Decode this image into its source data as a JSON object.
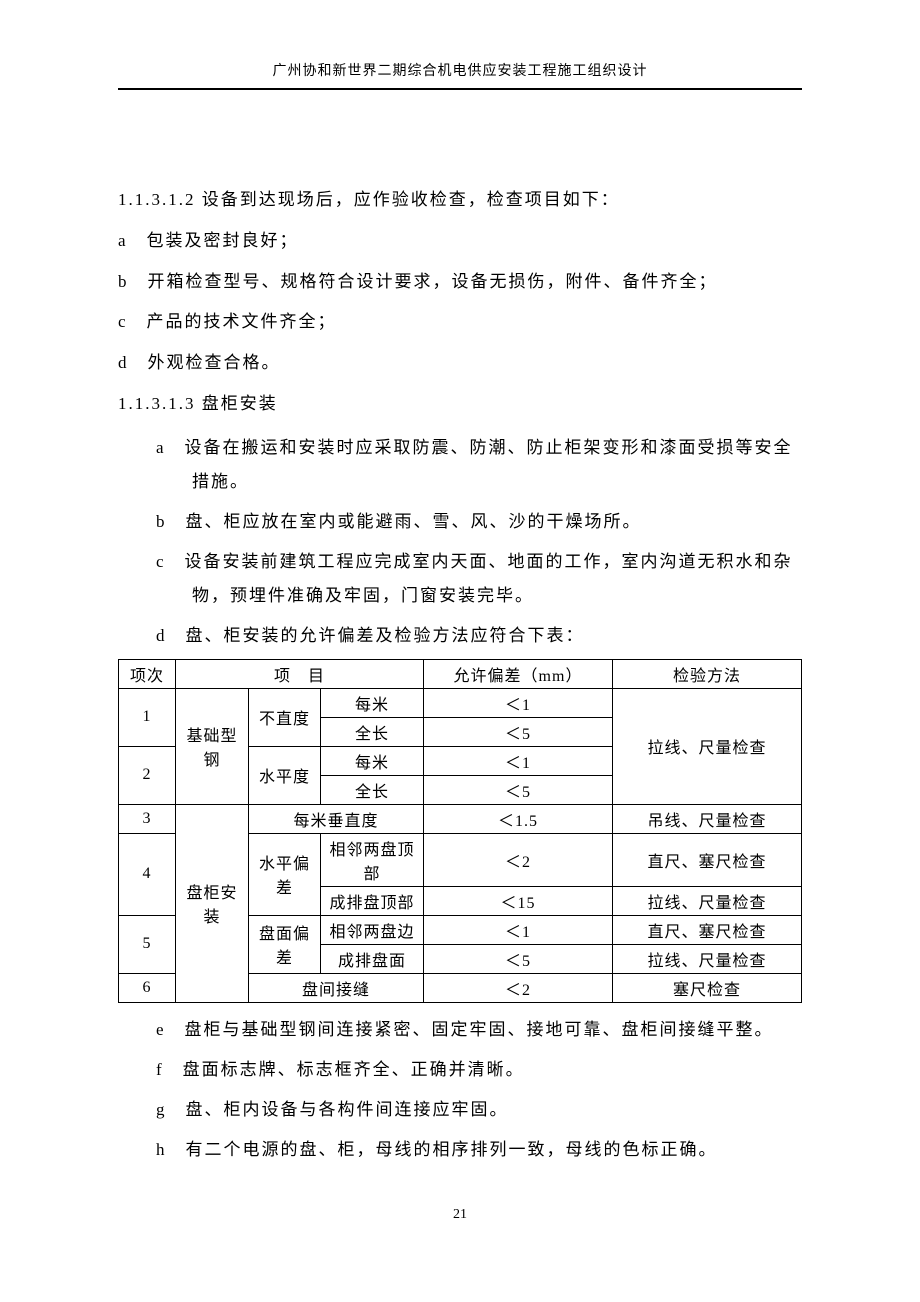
{
  "header": "广州协和新世界二期综合机电供应安装工程施工组织设计",
  "section1": {
    "num": "1.1.3.1.2",
    "title": "设备到达现场后，应作验收检查，检查项目如下：",
    "items": [
      {
        "k": "a",
        "t": "包装及密封良好；"
      },
      {
        "k": "b",
        "t": "开箱检查型号、规格符合设计要求，设备无损伤，附件、备件齐全；"
      },
      {
        "k": "c",
        "t": "产品的技术文件齐全；"
      },
      {
        "k": "d",
        "t": "外观检查合格。"
      }
    ]
  },
  "section2": {
    "num": "1.1.3.1.3",
    "title": "盘柜安装",
    "items": [
      {
        "k": "a",
        "t": "设备在搬运和安装时应采取防震、防潮、防止柜架变形和漆面受损等安全措施。"
      },
      {
        "k": "b",
        "t": "盘、柜应放在室内或能避雨、雪、风、沙的干燥场所。"
      },
      {
        "k": "c",
        "t": "设备安装前建筑工程应完成室内天面、地面的工作，室内沟道无积水和杂物，预埋件准确及牢固，门窗安装完毕。"
      },
      {
        "k": "d",
        "t": "盘、柜安装的允许偏差及检验方法应符合下表："
      }
    ],
    "after": [
      {
        "k": "e",
        "t": "盘柜与基础型钢间连接紧密、固定牢固、接地可靠、盘柜间接缝平整。"
      },
      {
        "k": "f",
        "t": "盘面标志牌、标志框齐全、正确并清晰。"
      },
      {
        "k": "g",
        "t": "盘、柜内设备与各构件间连接应牢固。"
      },
      {
        "k": "h",
        "t": "有二个电源的盘、柜，母线的相序排列一致，母线的色标正确。"
      }
    ]
  },
  "table": {
    "head": {
      "idx": "项次",
      "item": "项　目",
      "dev": "允许偏差（mm）",
      "method": "检验方法"
    },
    "group1": "基础型钢",
    "group2": "盘柜安装",
    "r1_sub": "不直度",
    "r1a": "每米",
    "r1a_v": "＜1",
    "r1b": "全长",
    "r1b_v": "＜5",
    "r2_sub": "水平度",
    "r2a": "每米",
    "r2a_v": "＜1",
    "r2b": "全长",
    "r2b_v": "＜5",
    "m12": "拉线、尺量检查",
    "r3_item": "每米垂直度",
    "r3_v": "＜1.5",
    "r3_m": "吊线、尺量检查",
    "r4_sub": "水平偏差",
    "r4a": "相邻两盘顶部",
    "r4a_v": "＜2",
    "r4a_m": "直尺、塞尺检查",
    "r4b": "成排盘顶部",
    "r4b_v": "＜15",
    "r4b_m": "拉线、尺量检查",
    "r5_sub": "盘面偏差",
    "r5a": "相邻两盘边",
    "r5a_v": "＜1",
    "r5a_m": "直尺、塞尺检查",
    "r5b": "成排盘面",
    "r5b_v": "＜5",
    "r5b_m": "拉线、尺量检查",
    "r6_item": "盘间接缝",
    "r6_v": "＜2",
    "r6_m": "塞尺检查"
  },
  "pageNum": "21"
}
